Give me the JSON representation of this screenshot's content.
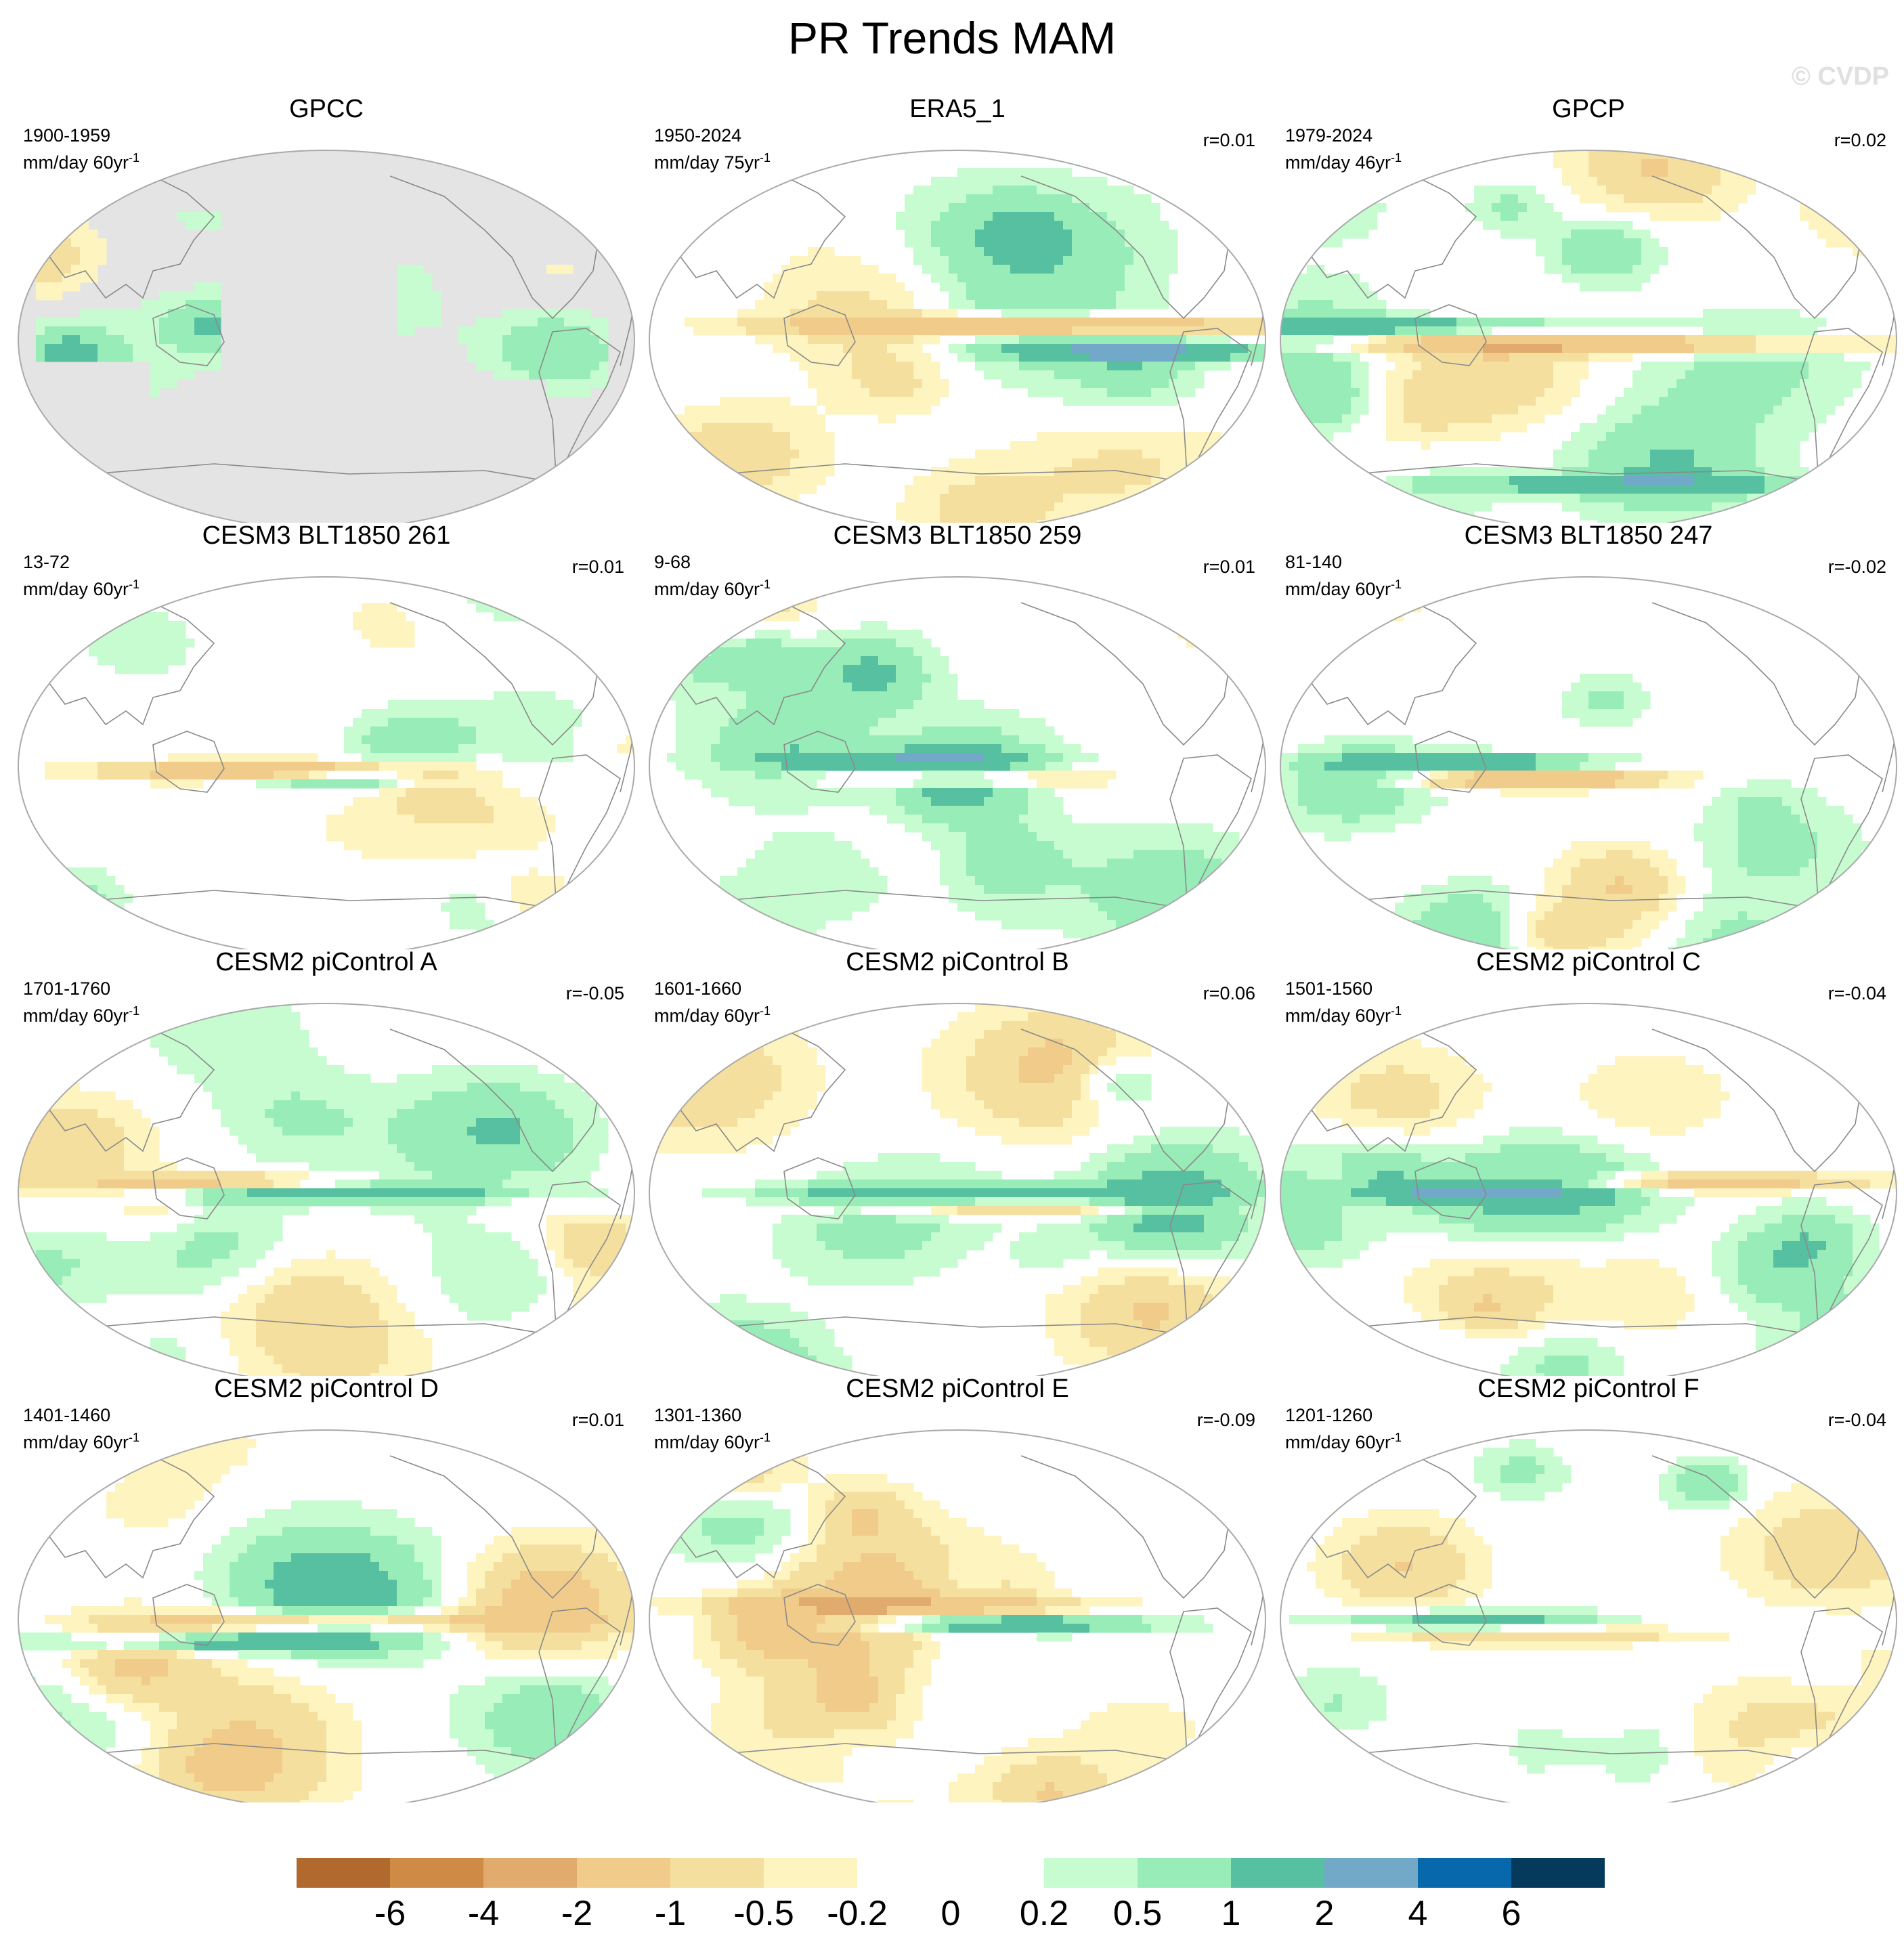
{
  "title": "PR Trends MAM",
  "watermark": "© CVDP",
  "colors": {
    "ocean_missing": "#e4e4e4",
    "coast": "#8a8a8a",
    "border": "#aaaaaa"
  },
  "panels": [
    {
      "title": "GPCC",
      "period": "1900-1959",
      "units": "mm/day 60yr",
      "units_sup": "-1",
      "r": "",
      "pattern": "gpcc"
    },
    {
      "title": "ERA5_1",
      "period": "1950-2024",
      "units": "mm/day 75yr",
      "units_sup": "-1",
      "r": "r=0.01",
      "pattern": "era5"
    },
    {
      "title": "GPCP",
      "period": "1979-2024",
      "units": "mm/day 46yr",
      "units_sup": "-1",
      "r": "r=0.02",
      "pattern": "gpcp"
    },
    {
      "title": "CESM3 BLT1850 261",
      "period": "13-72",
      "units": "mm/day 60yr",
      "units_sup": "-1",
      "r": "r=0.01",
      "pattern": "m1"
    },
    {
      "title": "CESM3 BLT1850 259",
      "period": "9-68",
      "units": "mm/day 60yr",
      "units_sup": "-1",
      "r": "r=0.01",
      "pattern": "m2"
    },
    {
      "title": "CESM3 BLT1850 247",
      "period": "81-140",
      "units": "mm/day 60yr",
      "units_sup": "-1",
      "r": "r=-0.02",
      "pattern": "m3"
    },
    {
      "title": "CESM2 piControl A",
      "period": "1701-1760",
      "units": "mm/day 60yr",
      "units_sup": "-1",
      "r": "r=-0.05",
      "pattern": "m4"
    },
    {
      "title": "CESM2 piControl B",
      "period": "1601-1660",
      "units": "mm/day 60yr",
      "units_sup": "-1",
      "r": "r=0.06",
      "pattern": "m5"
    },
    {
      "title": "CESM2 piControl C",
      "period": "1501-1560",
      "units": "mm/day 60yr",
      "units_sup": "-1",
      "r": "r=-0.04",
      "pattern": "m6"
    },
    {
      "title": "CESM2 piControl D",
      "period": "1401-1460",
      "units": "mm/day 60yr",
      "units_sup": "-1",
      "r": "r=0.01",
      "pattern": "m7"
    },
    {
      "title": "CESM2 piControl E",
      "period": "1301-1360",
      "units": "mm/day 60yr",
      "units_sup": "-1",
      "r": "r=-0.09",
      "pattern": "m8"
    },
    {
      "title": "CESM2 piControl F",
      "period": "1201-1260",
      "units": "mm/day 60yr",
      "units_sup": "-1",
      "r": "r=-0.04",
      "pattern": "m9"
    }
  ],
  "colorbar": {
    "colors": [
      "#b2692e",
      "#cf8a45",
      "#e0ab6c",
      "#f0cb8a",
      "#f5df9e",
      "#fdf4c0",
      "#ffffff",
      "#ffffff",
      "#c6fcd0",
      "#98ecb8",
      "#56c0a0",
      "#72a8c8",
      "#0868ac",
      "#053a5c"
    ],
    "labels": [
      "-6",
      "-4",
      "-2",
      "-1",
      "-0.5",
      "-0.2",
      "0",
      "0.2",
      "0.5",
      "1",
      "2",
      "4",
      "6"
    ]
  }
}
